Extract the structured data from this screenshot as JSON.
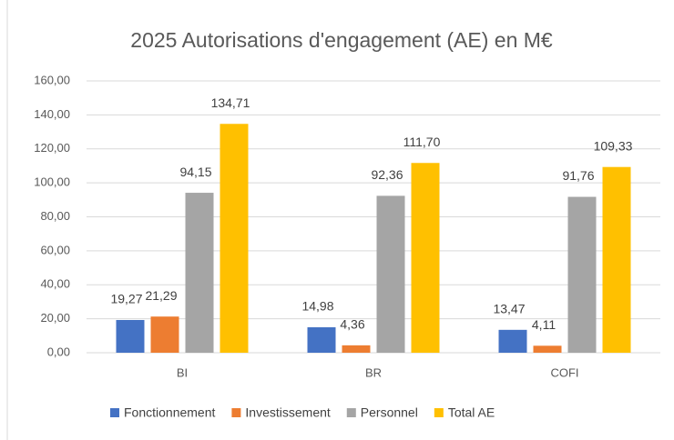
{
  "chart_data": {
    "type": "bar",
    "title": "2025 Autorisations d'engagement (AE) en M€",
    "categories": [
      "BI",
      "BR",
      "COFI"
    ],
    "series": [
      {
        "name": "Fonctionnement",
        "color": "#4472c4",
        "values": [
          19.27,
          14.98,
          13.47
        ],
        "value_labels": [
          "19,27",
          "14,98",
          "13,47"
        ]
      },
      {
        "name": "Investissement",
        "color": "#ed7d31",
        "values": [
          21.29,
          4.36,
          4.11
        ],
        "value_labels": [
          "21,29",
          "4,36",
          "4,11"
        ]
      },
      {
        "name": "Personnel",
        "color": "#a5a5a5",
        "values": [
          94.15,
          92.36,
          91.76
        ],
        "value_labels": [
          "94,15",
          "92,36",
          "91,76"
        ]
      },
      {
        "name": "Total AE",
        "color": "#ffc000",
        "values": [
          134.71,
          111.7,
          109.33
        ],
        "value_labels": [
          "134,71",
          "111,70",
          "109,33"
        ]
      }
    ],
    "ylim": [
      0,
      160
    ],
    "yticks": [
      {
        "value": 0,
        "label": "0,00"
      },
      {
        "value": 20,
        "label": "20,00"
      },
      {
        "value": 40,
        "label": "40,00"
      },
      {
        "value": 60,
        "label": "60,00"
      },
      {
        "value": 80,
        "label": "80,00"
      },
      {
        "value": 100,
        "label": "100,00"
      },
      {
        "value": 120,
        "label": "120,00"
      },
      {
        "value": 140,
        "label": "140,00"
      },
      {
        "value": 160,
        "label": "160,00"
      }
    ],
    "grid": true,
    "legend": "bottom"
  }
}
